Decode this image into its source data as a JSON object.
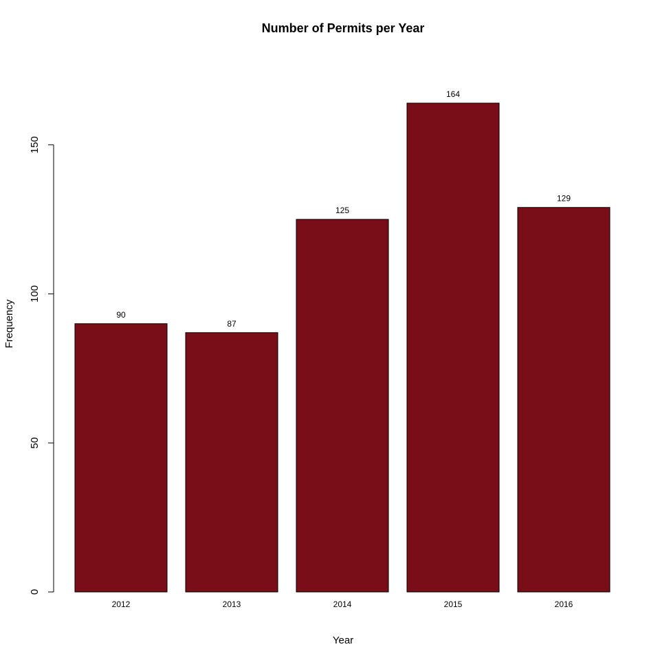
{
  "chart_data": {
    "type": "bar",
    "title": "Number of Permits per Year",
    "xlabel": "Year",
    "ylabel": "Frequency",
    "categories": [
      "2012",
      "2013",
      "2014",
      "2015",
      "2016"
    ],
    "values": [
      90,
      87,
      125,
      164,
      129
    ],
    "data_labels": [
      "90",
      "87",
      "125",
      "164",
      "129"
    ],
    "ylim": [
      0,
      164
    ],
    "y_ticks": [
      0,
      50,
      100,
      150
    ],
    "y_tick_labels": [
      "0",
      "50",
      "100",
      "150"
    ],
    "bar_color": "#7a0e18",
    "grid": false,
    "legend": "none"
  }
}
